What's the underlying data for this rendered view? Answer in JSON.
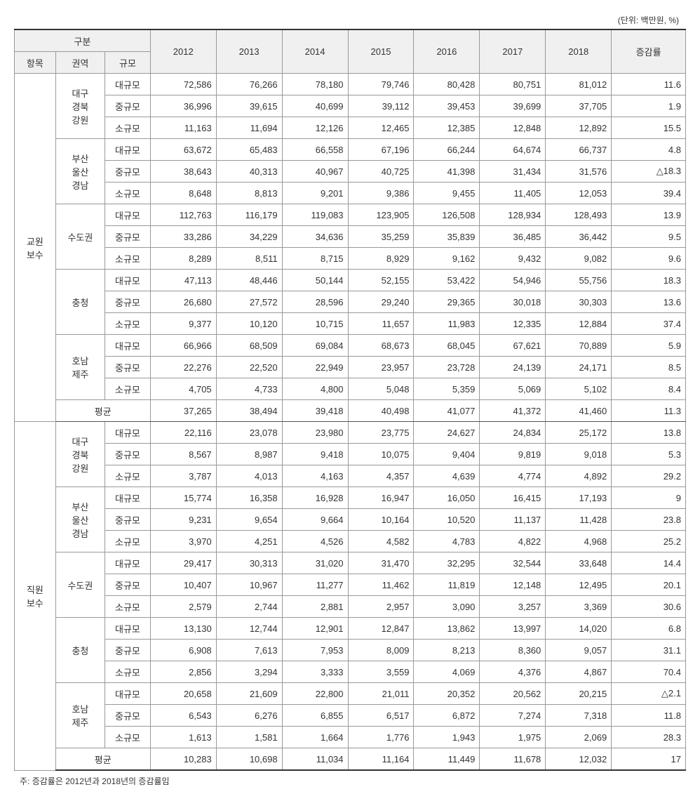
{
  "unit_label": "(단위: 백만원, %)",
  "header": {
    "group": "구분",
    "item": "항목",
    "region": "권역",
    "scale": "규모",
    "years": [
      "2012",
      "2013",
      "2014",
      "2015",
      "2016",
      "2017",
      "2018"
    ],
    "rate": "증감률"
  },
  "sections": [
    {
      "item": "교원\n보수",
      "groups": [
        {
          "region": "대구\n경북\n강원",
          "rows": [
            {
              "scale": "대규모",
              "vals": [
                "72,586",
                "76,266",
                "78,180",
                "79,746",
                "80,428",
                "80,751",
                "81,012"
              ],
              "rate": "11.6"
            },
            {
              "scale": "중규모",
              "vals": [
                "36,996",
                "39,615",
                "40,699",
                "39,112",
                "39,453",
                "39,699",
                "37,705"
              ],
              "rate": "1.9"
            },
            {
              "scale": "소규모",
              "vals": [
                "11,163",
                "11,694",
                "12,126",
                "12,465",
                "12,385",
                "12,848",
                "12,892"
              ],
              "rate": "15.5"
            }
          ]
        },
        {
          "region": "부산\n울산\n경남",
          "rows": [
            {
              "scale": "대규모",
              "vals": [
                "63,672",
                "65,483",
                "66,558",
                "67,196",
                "66,244",
                "64,674",
                "66,737"
              ],
              "rate": "4.8"
            },
            {
              "scale": "중규모",
              "vals": [
                "38,643",
                "40,313",
                "40,967",
                "40,725",
                "41,398",
                "31,434",
                "31,576"
              ],
              "rate": "△18.3"
            },
            {
              "scale": "소규모",
              "vals": [
                "8,648",
                "8,813",
                "9,201",
                "9,386",
                "9,455",
                "11,405",
                "12,053"
              ],
              "rate": "39.4"
            }
          ]
        },
        {
          "region": "수도권",
          "rows": [
            {
              "scale": "대규모",
              "vals": [
                "112,763",
                "116,179",
                "119,083",
                "123,905",
                "126,508",
                "128,934",
                "128,493"
              ],
              "rate": "13.9"
            },
            {
              "scale": "중규모",
              "vals": [
                "33,286",
                "34,229",
                "34,636",
                "35,259",
                "35,839",
                "36,485",
                "36,442"
              ],
              "rate": "9.5"
            },
            {
              "scale": "소규모",
              "vals": [
                "8,289",
                "8,511",
                "8,715",
                "8,929",
                "9,162",
                "9,432",
                "9,082"
              ],
              "rate": "9.6"
            }
          ]
        },
        {
          "region": "충청",
          "rows": [
            {
              "scale": "대규모",
              "vals": [
                "47,113",
                "48,446",
                "50,144",
                "52,155",
                "53,422",
                "54,946",
                "55,756"
              ],
              "rate": "18.3"
            },
            {
              "scale": "중규모",
              "vals": [
                "26,680",
                "27,572",
                "28,596",
                "29,240",
                "29,365",
                "30,018",
                "30,303"
              ],
              "rate": "13.6"
            },
            {
              "scale": "소규모",
              "vals": [
                "9,377",
                "10,120",
                "10,715",
                "11,657",
                "11,983",
                "12,335",
                "12,884"
              ],
              "rate": "37.4"
            }
          ]
        },
        {
          "region": "호남\n제주",
          "rows": [
            {
              "scale": "대규모",
              "vals": [
                "66,966",
                "68,509",
                "69,084",
                "68,673",
                "68,045",
                "67,621",
                "70,889"
              ],
              "rate": "5.9"
            },
            {
              "scale": "중규모",
              "vals": [
                "22,276",
                "22,520",
                "22,949",
                "23,957",
                "23,728",
                "24,139",
                "24,171"
              ],
              "rate": "8.5"
            },
            {
              "scale": "소규모",
              "vals": [
                "4,705",
                "4,733",
                "4,800",
                "5,048",
                "5,359",
                "5,069",
                "5,102"
              ],
              "rate": "8.4"
            }
          ]
        }
      ],
      "avg": {
        "label": "평균",
        "vals": [
          "37,265",
          "38,494",
          "39,418",
          "40,498",
          "41,077",
          "41,372",
          "41,460"
        ],
        "rate": "11.3"
      }
    },
    {
      "item": "직원\n보수",
      "groups": [
        {
          "region": "대구\n경북\n강원",
          "rows": [
            {
              "scale": "대규모",
              "vals": [
                "22,116",
                "23,078",
                "23,980",
                "23,775",
                "24,627",
                "24,834",
                "25,172"
              ],
              "rate": "13.8"
            },
            {
              "scale": "중규모",
              "vals": [
                "8,567",
                "8,987",
                "9,418",
                "10,075",
                "9,404",
                "9,819",
                "9,018"
              ],
              "rate": "5.3"
            },
            {
              "scale": "소규모",
              "vals": [
                "3,787",
                "4,013",
                "4,163",
                "4,357",
                "4,639",
                "4,774",
                "4,892"
              ],
              "rate": "29.2"
            }
          ]
        },
        {
          "region": "부산\n울산\n경남",
          "rows": [
            {
              "scale": "대규모",
              "vals": [
                "15,774",
                "16,358",
                "16,928",
                "16,947",
                "16,050",
                "16,415",
                "17,193"
              ],
              "rate": "9"
            },
            {
              "scale": "중규모",
              "vals": [
                "9,231",
                "9,654",
                "9,664",
                "10,164",
                "10,520",
                "11,137",
                "11,428"
              ],
              "rate": "23.8"
            },
            {
              "scale": "소규모",
              "vals": [
                "3,970",
                "4,251",
                "4,526",
                "4,582",
                "4,783",
                "4,822",
                "4,968"
              ],
              "rate": "25.2"
            }
          ]
        },
        {
          "region": "수도권",
          "rows": [
            {
              "scale": "대규모",
              "vals": [
                "29,417",
                "30,313",
                "31,020",
                "31,470",
                "32,295",
                "32,544",
                "33,648"
              ],
              "rate": "14.4"
            },
            {
              "scale": "중규모",
              "vals": [
                "10,407",
                "10,967",
                "11,277",
                "11,462",
                "11,819",
                "12,148",
                "12,495"
              ],
              "rate": "20.1"
            },
            {
              "scale": "소규모",
              "vals": [
                "2,579",
                "2,744",
                "2,881",
                "2,957",
                "3,090",
                "3,257",
                "3,369"
              ],
              "rate": "30.6"
            }
          ]
        },
        {
          "region": "충청",
          "rows": [
            {
              "scale": "대규모",
              "vals": [
                "13,130",
                "12,744",
                "12,901",
                "12,847",
                "13,862",
                "13,997",
                "14,020"
              ],
              "rate": "6.8"
            },
            {
              "scale": "중규모",
              "vals": [
                "6,908",
                "7,613",
                "7,953",
                "8,009",
                "8,213",
                "8,360",
                "9,057"
              ],
              "rate": "31.1"
            },
            {
              "scale": "소규모",
              "vals": [
                "2,856",
                "3,294",
                "3,333",
                "3,559",
                "4,069",
                "4,376",
                "4,867"
              ],
              "rate": "70.4"
            }
          ]
        },
        {
          "region": "호남\n제주",
          "rows": [
            {
              "scale": "대규모",
              "vals": [
                "20,658",
                "21,609",
                "22,800",
                "21,011",
                "20,352",
                "20,562",
                "20,215"
              ],
              "rate": "△2.1"
            },
            {
              "scale": "중규모",
              "vals": [
                "6,543",
                "6,276",
                "6,855",
                "6,517",
                "6,872",
                "7,274",
                "7,318"
              ],
              "rate": "11.8"
            },
            {
              "scale": "소규모",
              "vals": [
                "1,613",
                "1,581",
                "1,664",
                "1,776",
                "1,943",
                "1,975",
                "2,069"
              ],
              "rate": "28.3"
            }
          ]
        }
      ],
      "avg": {
        "label": "평균",
        "vals": [
          "10,283",
          "10,698",
          "11,034",
          "11,164",
          "11,449",
          "11,678",
          "12,032"
        ],
        "rate": "17"
      }
    }
  ],
  "note": "주: 증감률은 2012년과 2018년의 증감률임"
}
